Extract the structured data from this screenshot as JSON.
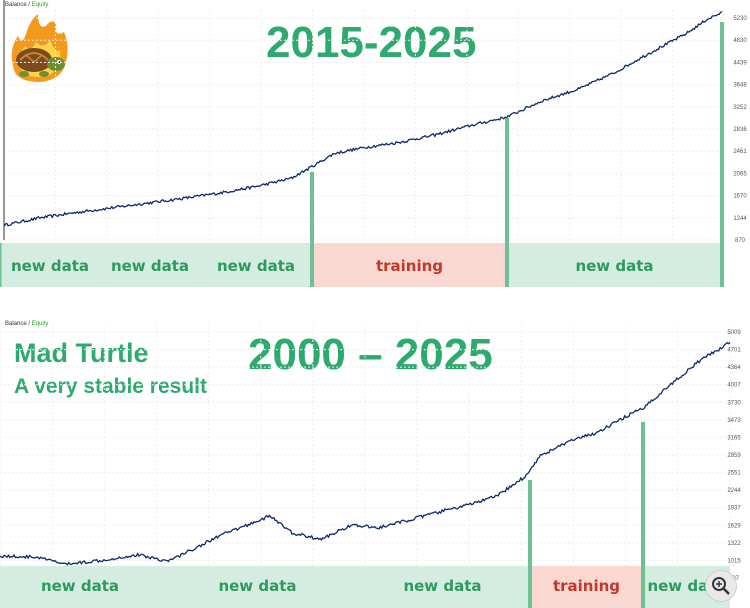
{
  "legend": {
    "balance": "Balance",
    "sep": "/",
    "equity": "Equity"
  },
  "chart_data": [
    {
      "type": "line",
      "title": "2015-2025",
      "y_ticks": [
        "5230",
        "4830",
        "4439",
        "3648",
        "3252",
        "2836",
        "2461",
        "2065",
        "1670",
        "1244",
        "870"
      ],
      "ylim": [
        870,
        5230
      ],
      "series": [
        {
          "x": [
            0,
            0.05,
            0.1,
            0.15,
            0.2,
            0.25,
            0.3,
            0.35,
            0.4,
            0.43,
            0.46,
            0.5,
            0.55,
            0.6,
            0.65,
            0.7,
            0.75,
            0.8,
            0.85,
            0.9,
            0.95,
            0.98,
            1.0
          ],
          "values": [
            1150,
            1290,
            1390,
            1480,
            1570,
            1660,
            1760,
            1880,
            2040,
            2270,
            2510,
            2620,
            2720,
            2860,
            3040,
            3200,
            3510,
            3730,
            4040,
            4420,
            4780,
            5060,
            5180
          ]
        }
      ],
      "bands": [
        {
          "label": "new data",
          "type": "new"
        },
        {
          "label": "new data",
          "type": "new"
        },
        {
          "label": "new data",
          "type": "new"
        },
        {
          "label": "training",
          "type": "training"
        },
        {
          "label": "new data",
          "type": "new"
        }
      ],
      "colors": {
        "line": "#0b2a6e",
        "new_band": "#d4ede0",
        "training_band": "#f8d8d0",
        "new_text": "#2e9a5e",
        "training_text": "#c0392b",
        "divider": "#6fc095",
        "title": "#2eaa6e"
      }
    },
    {
      "type": "line",
      "title": "2000 – 2025",
      "subtitle": "Mad Turtle",
      "subtitle2": "A very stable result",
      "y_ticks": [
        "5009",
        "4701",
        "4364",
        "4007",
        "3730",
        "3473",
        "3165",
        "2859",
        "2551",
        "2244",
        "1937",
        "1629",
        "1322",
        "1015",
        "707"
      ],
      "ylim": [
        707,
        5009
      ],
      "series": [
        {
          "x": [
            0,
            0.05,
            0.09,
            0.14,
            0.19,
            0.23,
            0.27,
            0.3,
            0.33,
            0.37,
            0.4,
            0.44,
            0.48,
            0.52,
            0.56,
            0.6,
            0.64,
            0.68,
            0.72,
            0.74,
            0.78,
            0.82,
            0.86,
            0.88,
            0.9,
            0.93,
            0.96,
            0.99,
            1.0
          ],
          "values": [
            1080,
            1060,
            940,
            1010,
            1100,
            990,
            1230,
            1420,
            1560,
            1760,
            1470,
            1360,
            1600,
            1560,
            1690,
            1820,
            1940,
            2090,
            2430,
            2780,
            3020,
            3180,
            3460,
            3570,
            3790,
            4100,
            4400,
            4620,
            4700
          ]
        }
      ],
      "bands": [
        {
          "label": "new data",
          "type": "new"
        },
        {
          "label": "new data",
          "type": "new"
        },
        {
          "label": "new data",
          "type": "new"
        },
        {
          "label": "training",
          "type": "training"
        },
        {
          "label": "new data",
          "type": "new"
        }
      ],
      "colors": {
        "line": "#0b2a6e",
        "new_band": "#d4ede0",
        "training_band": "#f8d8d0",
        "new_text": "#2e9a5e",
        "training_text": "#c0392b",
        "divider": "#6fc095",
        "title": "#2eaa6e"
      }
    }
  ]
}
